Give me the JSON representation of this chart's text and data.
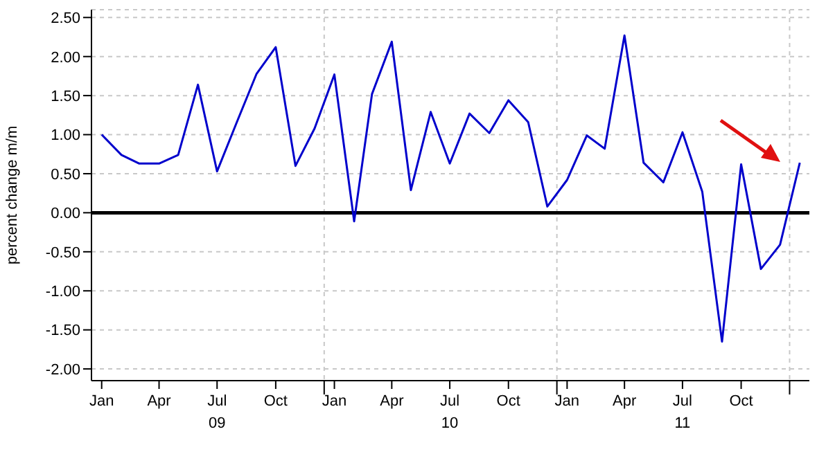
{
  "chart_data": {
    "type": "line",
    "ylabel": "percent change m/m",
    "x": [
      "2009-01",
      "2009-02",
      "2009-03",
      "2009-04",
      "2009-05",
      "2009-06",
      "2009-07",
      "2009-08",
      "2009-09",
      "2009-10",
      "2009-11",
      "2009-12",
      "2010-01",
      "2010-02",
      "2010-03",
      "2010-04",
      "2010-05",
      "2010-06",
      "2010-07",
      "2010-08",
      "2010-09",
      "2010-10",
      "2010-11",
      "2010-12",
      "2011-01",
      "2011-02",
      "2011-03",
      "2011-04",
      "2011-05",
      "2011-06",
      "2011-07",
      "2011-08",
      "2011-09",
      "2011-10",
      "2011-11",
      "2011-12",
      "2012-01"
    ],
    "series": [
      {
        "color": "#0000cc",
        "values": [
          1.0,
          0.74,
          0.63,
          0.63,
          0.74,
          1.64,
          0.53,
          1.16,
          1.78,
          2.12,
          0.6,
          1.08,
          1.77,
          -0.11,
          1.52,
          2.19,
          0.29,
          1.29,
          0.63,
          1.27,
          1.02,
          1.44,
          1.16,
          0.08,
          0.42,
          0.99,
          0.82,
          2.27,
          0.64,
          0.39,
          1.03,
          0.27,
          -1.65,
          0.62,
          -0.72,
          -0.41,
          0.64
        ]
      }
    ],
    "xlim": [
      "2008-12-16",
      "2012-01-16"
    ],
    "xticks": [
      {
        "value": "2009-01",
        "label": "Jan"
      },
      {
        "value": "2009-04",
        "label": "Apr"
      },
      {
        "value": "2009-07",
        "label": "Jul\n09"
      },
      {
        "value": "2009-10",
        "label": "Oct"
      },
      {
        "value": "2009-12-16",
        "label": null
      },
      {
        "value": "2010-01",
        "label": "Jan"
      },
      {
        "value": "2010-04",
        "label": "Apr"
      },
      {
        "value": "2010-07",
        "label": "Jul\n10"
      },
      {
        "value": "2010-10",
        "label": "Oct"
      },
      {
        "value": "2010-12-16",
        "label": null
      },
      {
        "value": "2011-01",
        "label": "Jan"
      },
      {
        "value": "2011-04",
        "label": "Apr"
      },
      {
        "value": "2011-07",
        "label": "Jul\n11"
      },
      {
        "value": "2011-10",
        "label": "Oct"
      },
      {
        "value": "2011-12-16",
        "label": null
      }
    ],
    "ylim": [
      -2.15,
      2.6
    ],
    "yticks": [
      {
        "value": -2,
        "label": "-2.00"
      },
      {
        "value": -1.5,
        "label": "-1.50"
      },
      {
        "value": -1,
        "label": "-1.00"
      },
      {
        "value": -0.5,
        "label": "-0.50"
      },
      {
        "value": 0,
        "label": "0.00"
      },
      {
        "value": 0.5,
        "label": "0.50"
      },
      {
        "value": 1,
        "label": "1.00"
      },
      {
        "value": 1.5,
        "label": "1.50"
      },
      {
        "value": 2,
        "label": "2.00"
      },
      {
        "value": 2.5,
        "label": "2.50"
      }
    ],
    "ref_lines": [
      {
        "axis": "y",
        "value": 0,
        "color": "#000000"
      }
    ],
    "grid": true,
    "marker": "none",
    "line_style": "solid"
  }
}
